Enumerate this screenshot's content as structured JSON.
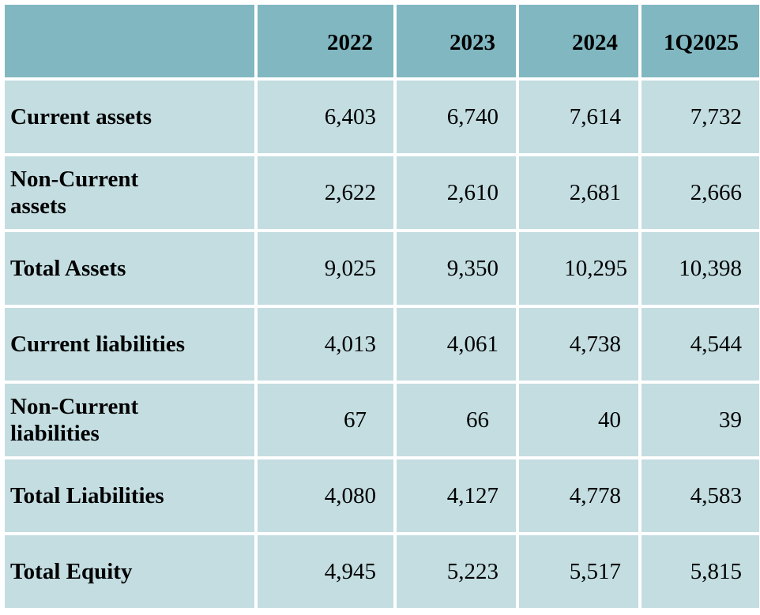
{
  "table": {
    "columns": [
      "",
      "2022",
      "2023",
      "2024",
      "1Q2025"
    ],
    "rows": [
      {
        "label": "Current assets",
        "values": [
          "6,403",
          "6,740",
          "7,614",
          "7,732"
        ]
      },
      {
        "label": "Non-Current assets",
        "values": [
          "2,622",
          "2,610",
          "2,681",
          "2,666"
        ]
      },
      {
        "label": "Total Assets",
        "values": [
          "9,025",
          "9,350",
          "10,295",
          "10,398"
        ]
      },
      {
        "label": "Current liabilities",
        "values": [
          "4,013",
          "4,061",
          "4,738",
          "4,544"
        ]
      },
      {
        "label": "Non-Current liabilities",
        "values": [
          "67",
          "66",
          "40",
          "39"
        ]
      },
      {
        "label": "Total Liabilities",
        "values": [
          "4,080",
          "4,127",
          "4,778",
          "4,583"
        ]
      },
      {
        "label": "Total Equity",
        "values": [
          "4,945",
          "5,223",
          "5,517",
          "5,815"
        ]
      }
    ]
  },
  "colors": {
    "header_bg": "#80b7c0",
    "cell_bg": "#c3dde1",
    "grid": "#ffffff"
  }
}
